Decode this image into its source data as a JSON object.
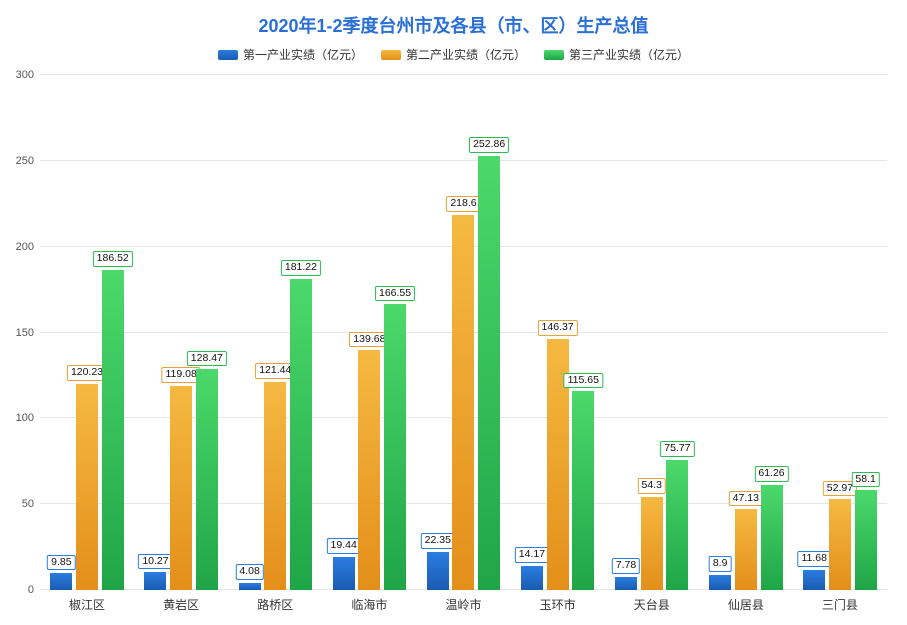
{
  "chart": {
    "type": "bar",
    "title": "2020年1-2季度台州市及各县（市、区）生产总值",
    "title_color": "#2a6fd6",
    "title_fontsize": 18,
    "background_color": "#ffffff",
    "grid_color": "#e6e6e6",
    "axis_label_color": "#555555",
    "xaxis_label_fontsize": 12,
    "yaxis_label_fontsize": 11,
    "bar_value_fontsize": 10.5,
    "ylim": [
      0,
      300
    ],
    "ytick_step": 50,
    "yticks": [
      0,
      50,
      100,
      150,
      200,
      250,
      300
    ],
    "categories": [
      "椒江区",
      "黄岩区",
      "路桥区",
      "临海市",
      "温岭市",
      "玉环市",
      "天台县",
      "仙居县",
      "三门县"
    ],
    "series": [
      {
        "name": "第一产业实绩（亿元）",
        "color_top": "#2a7de1",
        "color_bottom": "#1a5cb0",
        "border_color": "#2a7de1",
        "values": [
          9.85,
          10.27,
          4.08,
          19.44,
          22.35,
          14.17,
          7.78,
          8.9,
          11.68
        ]
      },
      {
        "name": "第二产业实绩（亿元）",
        "color_top": "#f5b941",
        "color_bottom": "#e38f1a",
        "border_color": "#e6a23c",
        "values": [
          120.23,
          119.08,
          121.44,
          139.68,
          218.6,
          146.37,
          54.3,
          47.13,
          52.97
        ]
      },
      {
        "name": "第三产业实绩（亿元）",
        "color_top": "#4cd96b",
        "color_bottom": "#1fa547",
        "border_color": "#2dbb55",
        "values": [
          186.52,
          128.47,
          181.22,
          166.55,
          252.86,
          115.65,
          75.77,
          61.26,
          58.1
        ]
      }
    ],
    "legend_fontsize": 12,
    "legend_position": "top-center",
    "bar_group_width_ratio": 0.78,
    "bar_gap_ratio": 0.05
  }
}
